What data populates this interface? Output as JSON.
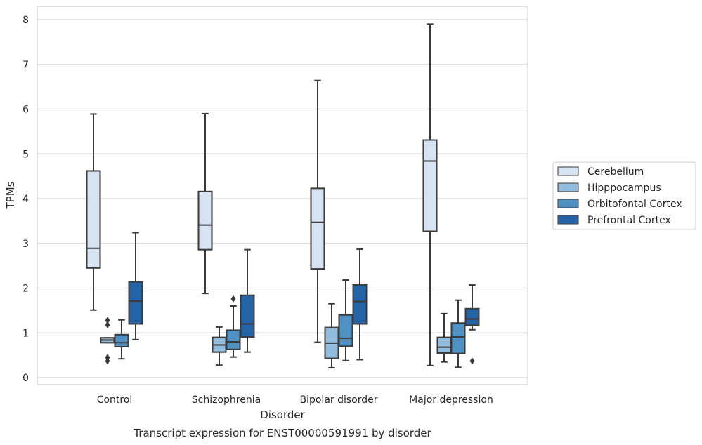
{
  "chart_data": {
    "type": "box",
    "xlabel": "Disorder",
    "ylabel": "TPMs",
    "caption": "Transcript expression for ENST00000591991 by disorder",
    "ylim": [
      -0.15,
      8.3
    ],
    "yticks": [
      "0",
      "1",
      "2",
      "3",
      "4",
      "5",
      "6",
      "7",
      "8"
    ],
    "grid": "horizontal",
    "legend_position": "right",
    "categories": [
      "Control",
      "Schizophrenia",
      "Bipolar disorder",
      "Major depression"
    ],
    "series": [
      {
        "name": "Cerebellum",
        "color": "#d6e3f3",
        "boxes": [
          {
            "whisker_low": 1.51,
            "q1": 2.45,
            "median": 2.89,
            "q3": 4.62,
            "whisker_high": 5.89,
            "outliers": []
          },
          {
            "whisker_low": 1.88,
            "q1": 2.86,
            "median": 3.41,
            "q3": 4.16,
            "whisker_high": 5.9,
            "outliers": []
          },
          {
            "whisker_low": 0.79,
            "q1": 2.43,
            "median": 3.47,
            "q3": 4.23,
            "whisker_high": 6.64,
            "outliers": []
          },
          {
            "whisker_low": 0.27,
            "q1": 3.27,
            "median": 4.84,
            "q3": 5.31,
            "whisker_high": 7.9,
            "outliers": []
          }
        ]
      },
      {
        "name": "Hipppocampus",
        "color": "#93bcdc",
        "boxes": [
          {
            "whisker_low": 0.78,
            "q1": 0.78,
            "median": 0.84,
            "q3": 0.89,
            "whisker_high": 0.89,
            "outliers": [
              1.28,
              1.18,
              0.45,
              0.37
            ]
          },
          {
            "whisker_low": 0.28,
            "q1": 0.57,
            "median": 0.73,
            "q3": 0.9,
            "whisker_high": 1.13,
            "outliers": []
          },
          {
            "whisker_low": 0.22,
            "q1": 0.43,
            "median": 0.77,
            "q3": 1.12,
            "whisker_high": 1.65,
            "outliers": []
          },
          {
            "whisker_low": 0.35,
            "q1": 0.55,
            "median": 0.68,
            "q3": 0.9,
            "whisker_high": 1.43,
            "outliers": []
          }
        ]
      },
      {
        "name": "Orbitofontal Cortex",
        "color": "#5091c4",
        "boxes": [
          {
            "whisker_low": 0.42,
            "q1": 0.69,
            "median": 0.78,
            "q3": 0.96,
            "whisker_high": 1.29,
            "outliers": []
          },
          {
            "whisker_low": 0.46,
            "q1": 0.63,
            "median": 0.8,
            "q3": 1.06,
            "whisker_high": 1.6,
            "outliers": [
              1.76
            ]
          },
          {
            "whisker_low": 0.38,
            "q1": 0.7,
            "median": 0.88,
            "q3": 1.4,
            "whisker_high": 2.18,
            "outliers": []
          },
          {
            "whisker_low": 0.23,
            "q1": 0.54,
            "median": 0.91,
            "q3": 1.22,
            "whisker_high": 1.73,
            "outliers": []
          }
        ]
      },
      {
        "name": "Prefrontal Cortex",
        "color": "#2563a6",
        "boxes": [
          {
            "whisker_low": 0.85,
            "q1": 1.2,
            "median": 1.71,
            "q3": 2.14,
            "whisker_high": 3.24,
            "outliers": []
          },
          {
            "whisker_low": 0.57,
            "q1": 0.91,
            "median": 1.2,
            "q3": 1.84,
            "whisker_high": 2.86,
            "outliers": []
          },
          {
            "whisker_low": 0.4,
            "q1": 1.2,
            "median": 1.7,
            "q3": 2.07,
            "whisker_high": 2.87,
            "outliers": []
          },
          {
            "whisker_low": 1.07,
            "q1": 1.17,
            "median": 1.31,
            "q3": 1.54,
            "whisker_high": 2.07,
            "outliers": [
              0.37
            ]
          }
        ]
      }
    ]
  }
}
